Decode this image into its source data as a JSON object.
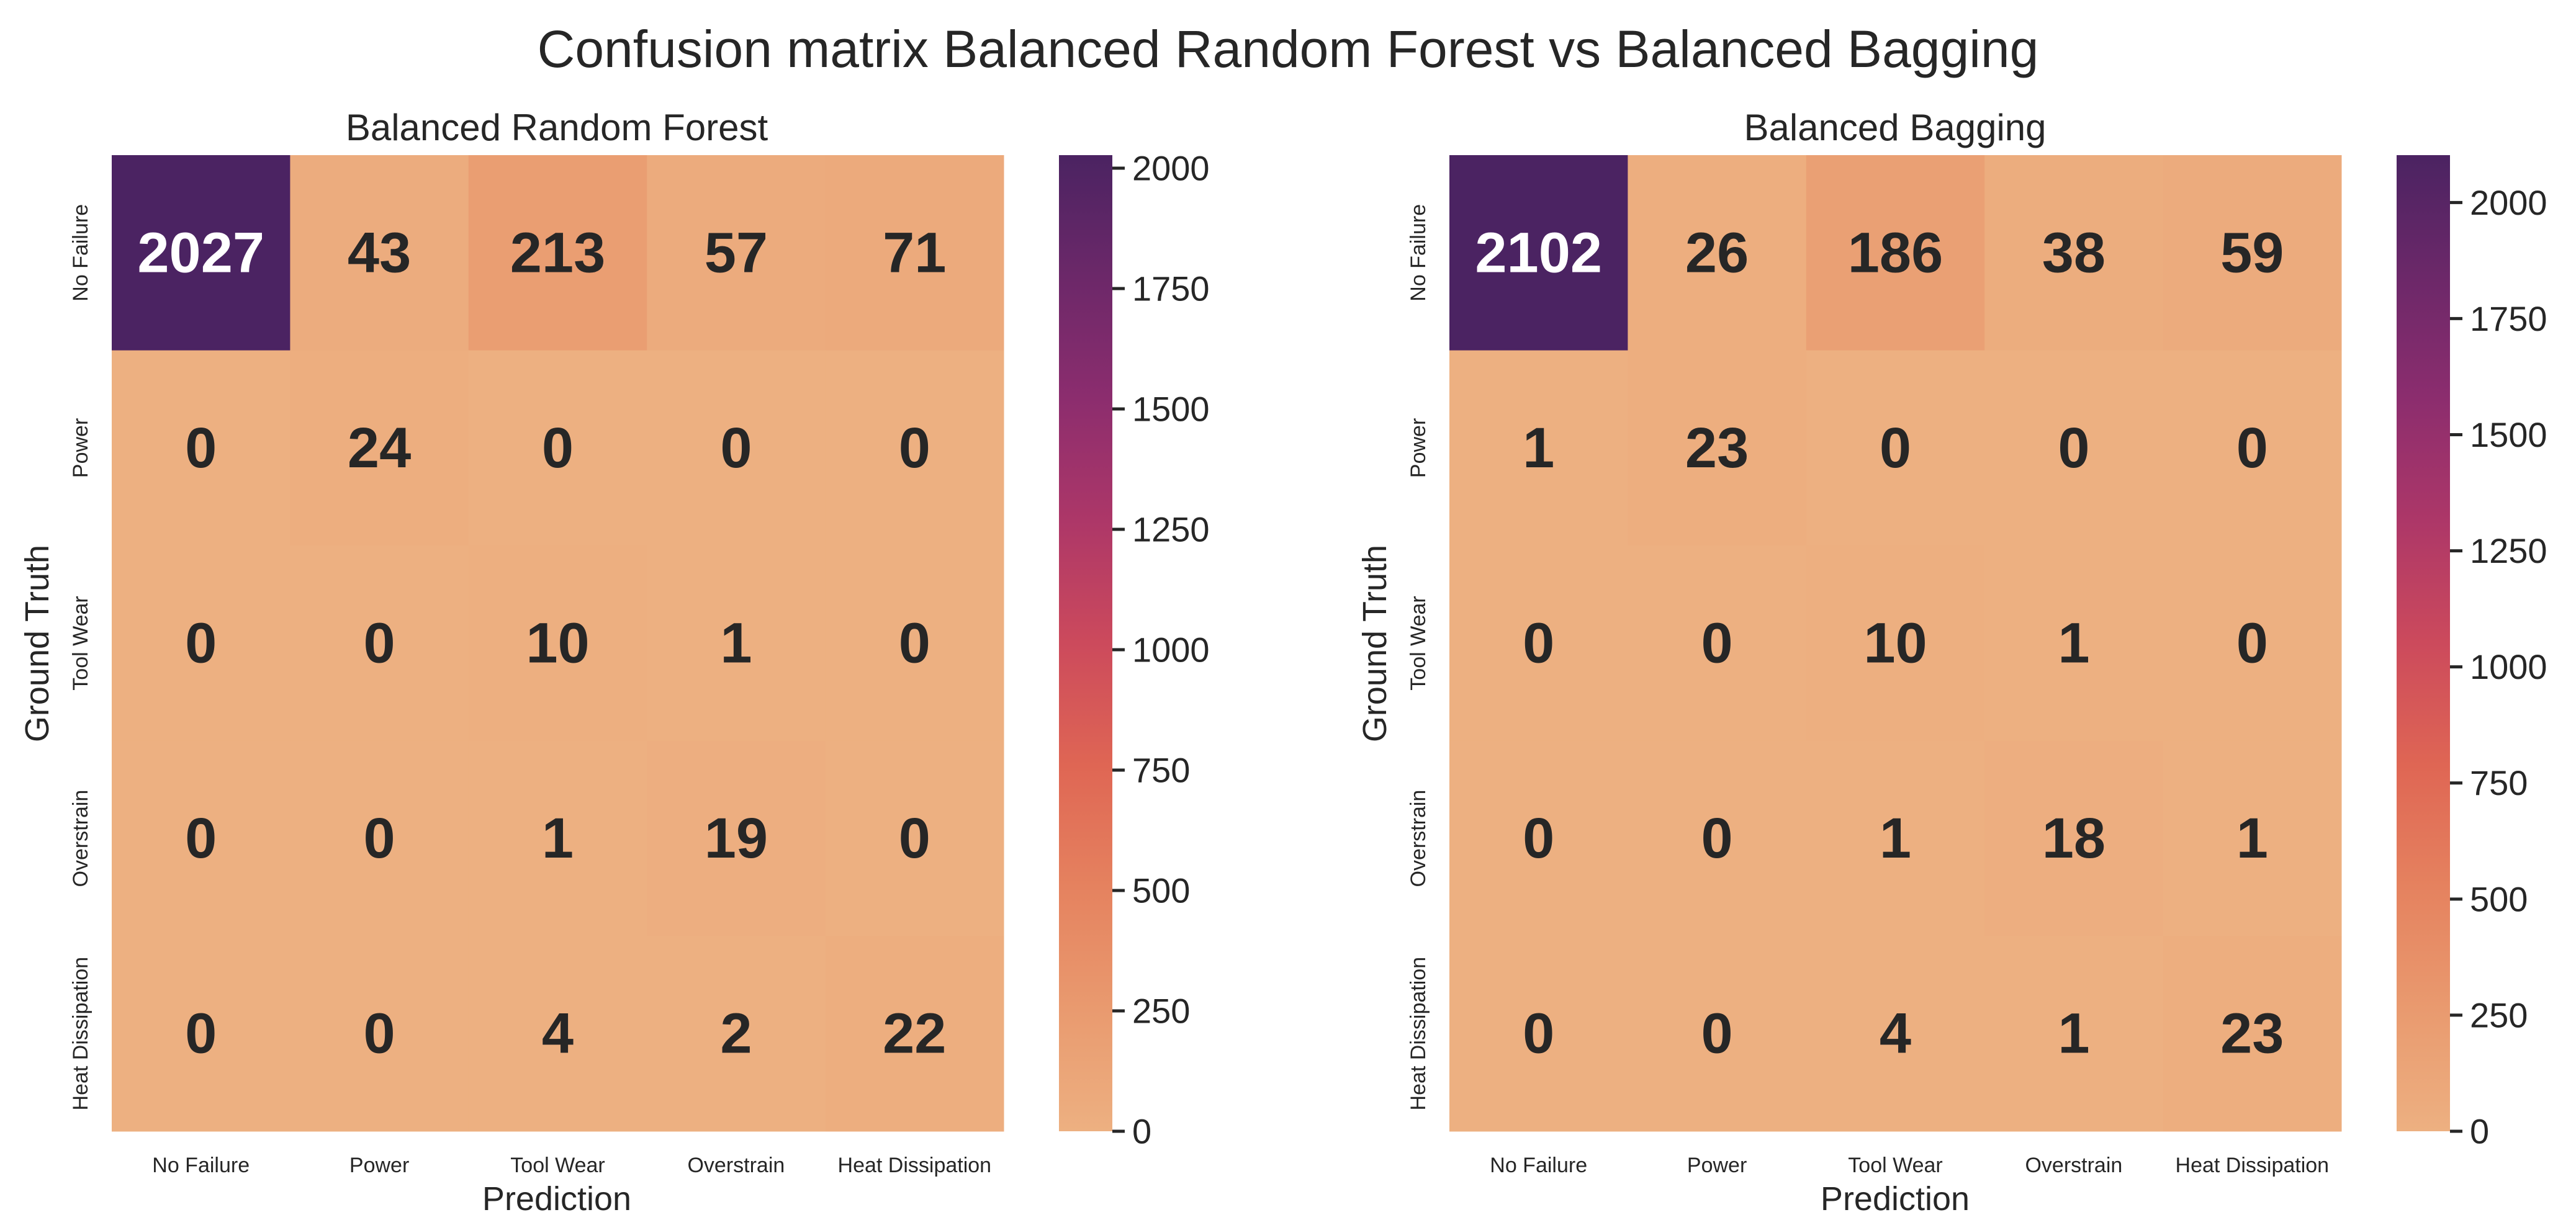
{
  "figure": {
    "title": "Confusion matrix Balanced Random Forest vs Balanced Bagging"
  },
  "chart_data": [
    {
      "type": "heatmap",
      "title": "Balanced Random Forest",
      "xlabel": "Prediction",
      "ylabel": "Ground Truth",
      "x_categories": [
        "No Failure",
        "Power",
        "Tool Wear",
        "Overstrain",
        "Heat Dissipation"
      ],
      "y_categories": [
        "No Failure",
        "Power",
        "Tool Wear",
        "Overstrain",
        "Heat Dissipation"
      ],
      "values": [
        [
          2027,
          43,
          213,
          57,
          71
        ],
        [
          0,
          24,
          0,
          0,
          0
        ],
        [
          0,
          0,
          10,
          1,
          0
        ],
        [
          0,
          0,
          1,
          19,
          0
        ],
        [
          0,
          0,
          4,
          2,
          22
        ]
      ],
      "colorbar": {
        "range": [
          0,
          2027
        ],
        "ticks": [
          "0",
          "250",
          "500",
          "750",
          "1000",
          "1250",
          "1500",
          "1750",
          "2000"
        ]
      },
      "colormap": "flare",
      "colors": {
        "low": "#edb081",
        "high": "#4b2362"
      }
    },
    {
      "type": "heatmap",
      "title": "Balanced Bagging",
      "xlabel": "Prediction",
      "ylabel": "Ground Truth",
      "x_categories": [
        "No Failure",
        "Power",
        "Tool Wear",
        "Overstrain",
        "Heat Dissipation"
      ],
      "y_categories": [
        "No Failure",
        "Power",
        "Tool Wear",
        "Overstrain",
        "Heat Dissipation"
      ],
      "values": [
        [
          2102,
          26,
          186,
          38,
          59
        ],
        [
          1,
          23,
          0,
          0,
          0
        ],
        [
          0,
          0,
          10,
          1,
          0
        ],
        [
          0,
          0,
          1,
          18,
          1
        ],
        [
          0,
          0,
          4,
          1,
          23
        ]
      ],
      "colorbar": {
        "range": [
          0,
          2102
        ],
        "ticks": [
          "0",
          "250",
          "500",
          "750",
          "1000",
          "1250",
          "1500",
          "1750",
          "2000"
        ]
      },
      "colormap": "flare",
      "colors": {
        "low": "#edb081",
        "high": "#4b2362"
      }
    }
  ]
}
